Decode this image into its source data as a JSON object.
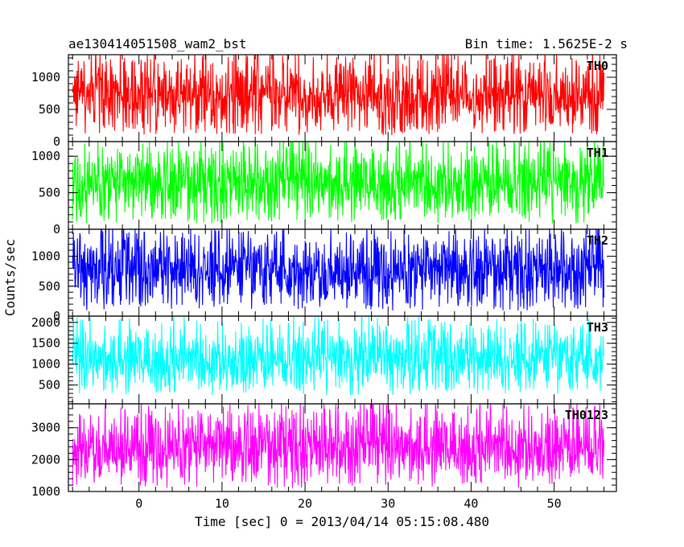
{
  "header": {
    "obs_id": "ae130414051508_wam2_bst",
    "bin_time": "Bin time: 1.5625E-2 s"
  },
  "chart_data": {
    "type": "line",
    "title": "ae130414051508_wam2_bst",
    "subtitle": "Bin time: 1.5625E-2 s",
    "xlabel": "Time [sec] 0 = 2013/04/14 05:15:08.480",
    "ylabel": "Counts/sec",
    "xlim": [
      -8.5,
      57.5
    ],
    "x_ticks": [
      "0",
      "10",
      "20",
      "30",
      "40",
      "50"
    ],
    "x_tick_values": [
      0,
      10,
      20,
      30,
      40,
      50
    ],
    "data_x_range": [
      -8.0,
      56.0
    ],
    "panels": [
      {
        "name": "TH0",
        "color": "#ff0000",
        "ylim": [
          0,
          1350
        ],
        "y_ticks": [
          "0",
          "500",
          "1000"
        ],
        "y_tick_values": [
          0,
          500,
          1000
        ],
        "mean": 520,
        "low": 100,
        "high": 1350
      },
      {
        "name": "TH1",
        "color": "#00ff00",
        "ylim": [
          0,
          1200
        ],
        "y_ticks": [
          "0",
          "500",
          "1000"
        ],
        "y_tick_values": [
          0,
          500,
          1000
        ],
        "mean": 540,
        "low": 80,
        "high": 1200
      },
      {
        "name": "TH2",
        "color": "#0000ff",
        "ylim": [
          0,
          1450
        ],
        "y_ticks": [
          "0",
          "500",
          "1000"
        ],
        "y_tick_values": [
          0,
          500,
          1000
        ],
        "mean": 650,
        "low": 90,
        "high": 1450
      },
      {
        "name": "TH3",
        "color": "#00ffff",
        "ylim": [
          50,
          2150
        ],
        "y_ticks": [
          "500",
          "1000",
          "1500",
          "2000"
        ],
        "y_tick_values": [
          500,
          1000,
          1500,
          2000
        ],
        "mean": 1000,
        "low": 250,
        "high": 2000
      },
      {
        "name": "TH0123",
        "color": "#ff00ff",
        "ylim": [
          1000,
          3750
        ],
        "y_ticks": [
          "1000",
          "2000",
          "3000"
        ],
        "y_tick_values": [
          1000,
          2000,
          3000
        ],
        "mean": 2600,
        "low": 1100,
        "high": 3700
      }
    ]
  }
}
